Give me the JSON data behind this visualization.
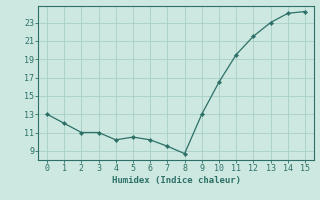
{
  "x": [
    0,
    1,
    2,
    3,
    4,
    5,
    6,
    7,
    8,
    9,
    10,
    11,
    12,
    13,
    14,
    15
  ],
  "y": [
    13.0,
    12.0,
    11.0,
    11.0,
    10.2,
    10.5,
    10.2,
    9.5,
    8.7,
    13.0,
    16.5,
    19.5,
    21.5,
    23.0,
    24.0,
    24.2
  ],
  "line_color": "#2d7068",
  "marker_color": "#2d7068",
  "bg_color": "#cce8e0",
  "grid_color": "#a8cfc8",
  "axis_color": "#2d7068",
  "xlabel": "Humidex (Indice chaleur)",
  "xlim": [
    -0.5,
    15.5
  ],
  "ylim": [
    8.0,
    24.8
  ],
  "yticks": [
    9,
    11,
    13,
    15,
    17,
    19,
    21,
    23
  ],
  "xticks": [
    0,
    1,
    2,
    3,
    4,
    5,
    6,
    7,
    8,
    9,
    10,
    11,
    12,
    13,
    14,
    15
  ],
  "label_fontsize": 6.5,
  "tick_fontsize": 6.0
}
